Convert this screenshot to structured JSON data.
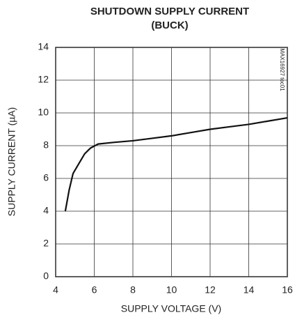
{
  "chart_data": {
    "type": "line",
    "title": "SHUTDOWN SUPPLY CURRENT",
    "subtitle": "(BUCK)",
    "x_label": "SUPPLY VOLTAGE (V)",
    "y_label": "SUPPLY CURRENT (µA)",
    "annotation": "MAX16927 toc01",
    "x": [
      4.5,
      4.7,
      4.9,
      5.2,
      5.5,
      5.8,
      6.2,
      7,
      8,
      9,
      10,
      11,
      12,
      13,
      14,
      15,
      16
    ],
    "values": [
      4.0,
      5.3,
      6.3,
      6.9,
      7.5,
      7.85,
      8.1,
      8.2,
      8.3,
      8.45,
      8.6,
      8.8,
      9.0,
      9.15,
      9.3,
      9.5,
      9.7
    ],
    "color": "#111111",
    "xlim": [
      4,
      16
    ],
    "xticks": [
      4,
      6,
      8,
      10,
      12,
      14,
      16
    ],
    "ylim": [
      0,
      14
    ],
    "yticks": [
      0,
      2,
      4,
      6,
      8,
      10,
      12,
      14
    ],
    "grid": true
  }
}
